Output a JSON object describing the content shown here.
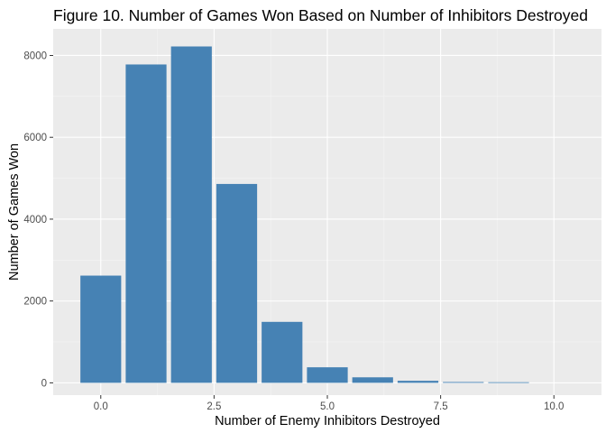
{
  "chart_data": {
    "type": "bar",
    "title": "Figure 10. Number of Games Won Based on Number of Inhibitors Destroyed",
    "xlabel": "Number of Enemy Inhibitors Destroyed",
    "ylabel": "Number of Games Won",
    "x": [
      0,
      1,
      2,
      3,
      4,
      5,
      6,
      7,
      8,
      9
    ],
    "values": [
      2620,
      7780,
      8220,
      4860,
      1490,
      380,
      135,
      50,
      20,
      15
    ],
    "xlim": [
      -1.05,
      11.05
    ],
    "ylim": [
      -300,
      8650
    ],
    "x_ticks": [
      0,
      2.5,
      5,
      7.5,
      10
    ],
    "x_tick_labels": [
      "0.0",
      "2.5",
      "5.0",
      "7.5",
      "10.0"
    ],
    "y_ticks": [
      0,
      2000,
      4000,
      6000,
      8000
    ],
    "y_tick_labels": [
      "0",
      "2000",
      "4000",
      "6000",
      "8000"
    ],
    "grid": true,
    "colors": {
      "bar": "#4682B4",
      "panel": "#EBEBEB",
      "grid_major": "#FFFFFF",
      "grid_minor": "#F5F5F5",
      "tick": "#333333"
    }
  }
}
